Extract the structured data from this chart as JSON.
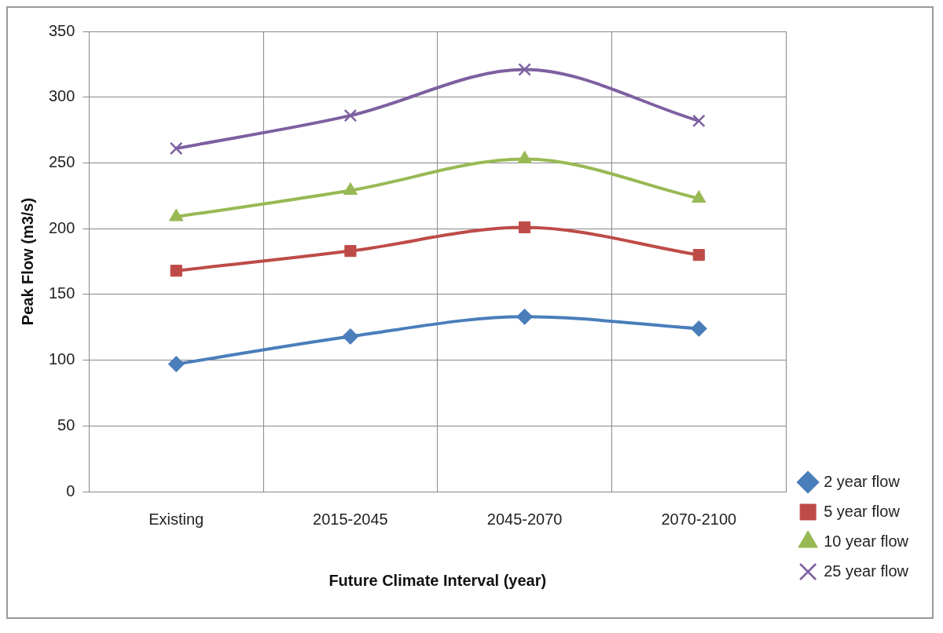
{
  "chart_data": {
    "type": "line",
    "xlabel": "Future Climate Interval (year)",
    "ylabel": "Peak Flow (m3/s)",
    "categories": [
      "Existing",
      "2015-2045",
      "2045-2070",
      "2070-2100"
    ],
    "series": [
      {
        "name": "2 year flow",
        "color": "#4a7ebb",
        "marker": "diamond",
        "values": [
          97,
          118,
          133,
          124
        ]
      },
      {
        "name": "5 year flow",
        "color": "#be4b48",
        "marker": "square",
        "values": [
          168,
          183,
          201,
          180
        ]
      },
      {
        "name": "10 year flow",
        "color": "#98b954",
        "marker": "triangle",
        "values": [
          209,
          229,
          253,
          223
        ]
      },
      {
        "name": "25 year flow",
        "color": "#7d60a0",
        "marker": "cross",
        "values": [
          261,
          286,
          321,
          282
        ]
      }
    ],
    "ylim": [
      0,
      350
    ],
    "yticks": [
      0,
      50,
      100,
      150,
      200,
      250,
      300,
      350
    ],
    "grid": true,
    "legend": "right",
    "line_style": "solid"
  }
}
